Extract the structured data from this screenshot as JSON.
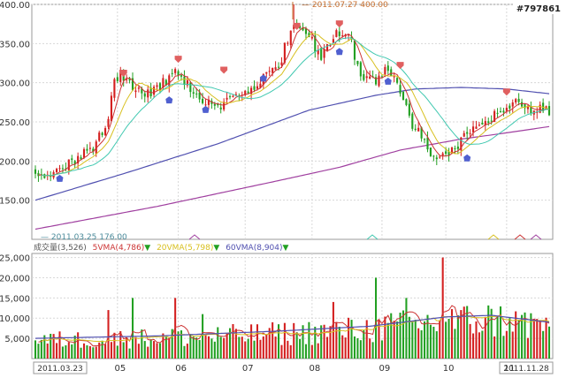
{
  "watermark": "#797861",
  "colors": {
    "up": "#d42020",
    "down": "#22a022",
    "ma5": "#cc3333",
    "ma20": "#d8c020",
    "ma60": "#40c8b0",
    "long1": "#5050b0",
    "long2": "#a040a0",
    "vma5": "#cc3333",
    "vma20": "#d8c020",
    "vma60": "#5050b0",
    "grid": "#d8d8d8",
    "buy_marker": "#5060d0",
    "sell_marker": "#e06060",
    "annotation": "#c87030"
  },
  "chart_data": [
    {
      "type": "candlestick",
      "ylim": [
        100,
        400
      ],
      "yticks": [
        "150.00",
        "200.00",
        "250.00",
        "300.00",
        "350.00",
        "400.00"
      ],
      "high_annotation": {
        "date": "2011.07.27",
        "value": "400.00"
      },
      "low_annotation": {
        "date": "2011.03.25",
        "value": "176.00"
      },
      "x_start": "2011.03.23",
      "x_end": "2011.11.28",
      "month_ticks": [
        {
          "label": "05",
          "index": 27
        },
        {
          "label": "06",
          "index": 47
        },
        {
          "label": "07",
          "index": 69
        },
        {
          "label": "08",
          "index": 91
        },
        {
          "label": "09",
          "index": 114
        },
        {
          "label": "10",
          "index": 135
        },
        {
          "label": "11",
          "index": 155
        }
      ],
      "series_path": [
        [
          0,
          188
        ],
        [
          4,
          178
        ],
        [
          8,
          185
        ],
        [
          12,
          200
        ],
        [
          16,
          210
        ],
        [
          20,
          222
        ],
        [
          24,
          258
        ],
        [
          26,
          300
        ],
        [
          28,
          312
        ],
        [
          30,
          300
        ],
        [
          32,
          295
        ],
        [
          34,
          288
        ],
        [
          38,
          285
        ],
        [
          42,
          300
        ],
        [
          44,
          305
        ],
        [
          46,
          312
        ],
        [
          48,
          305
        ],
        [
          52,
          290
        ],
        [
          56,
          275
        ],
        [
          60,
          265
        ],
        [
          62,
          272
        ],
        [
          66,
          280
        ],
        [
          70,
          290
        ],
        [
          74,
          302
        ],
        [
          78,
          312
        ],
        [
          80,
          320
        ],
        [
          82,
          345
        ],
        [
          84,
          370
        ],
        [
          86,
          380
        ],
        [
          88,
          365
        ],
        [
          90,
          360
        ],
        [
          92,
          345
        ],
        [
          94,
          335
        ],
        [
          96,
          348
        ],
        [
          98,
          360
        ],
        [
          100,
          365
        ],
        [
          102,
          368
        ],
        [
          104,
          350
        ],
        [
          106,
          322
        ],
        [
          108,
          308
        ],
        [
          110,
          302
        ],
        [
          112,
          300
        ],
        [
          114,
          310
        ],
        [
          116,
          320
        ],
        [
          118,
          308
        ],
        [
          120,
          285
        ],
        [
          122,
          268
        ],
        [
          124,
          248
        ],
        [
          126,
          240
        ],
        [
          128,
          225
        ],
        [
          130,
          210
        ],
        [
          132,
          208
        ],
        [
          134,
          212
        ],
        [
          136,
          210
        ],
        [
          138,
          215
        ],
        [
          140,
          225
        ],
        [
          142,
          236
        ],
        [
          144,
          238
        ],
        [
          146,
          242
        ],
        [
          148,
          250
        ],
        [
          150,
          258
        ],
        [
          152,
          262
        ],
        [
          154,
          268
        ],
        [
          156,
          272
        ],
        [
          158,
          275
        ],
        [
          160,
          276
        ],
        [
          162,
          270
        ],
        [
          164,
          262
        ],
        [
          166,
          265
        ],
        [
          168,
          272
        ],
        [
          169,
          263
        ]
      ],
      "ma_long1": [
        [
          0,
          150
        ],
        [
          30,
          185
        ],
        [
          60,
          222
        ],
        [
          90,
          265
        ],
        [
          112,
          284
        ],
        [
          125,
          292
        ],
        [
          140,
          294
        ],
        [
          155,
          292
        ],
        [
          169,
          286
        ]
      ],
      "ma_long2": [
        [
          0,
          113
        ],
        [
          40,
          142
        ],
        [
          80,
          175
        ],
        [
          100,
          192
        ],
        [
          120,
          214
        ],
        [
          140,
          228
        ],
        [
          155,
          236
        ],
        [
          169,
          244
        ]
      ],
      "sell_markers": [
        [
          29,
          312
        ],
        [
          47,
          330
        ],
        [
          62,
          316
        ],
        [
          86,
          372
        ],
        [
          100,
          375
        ],
        [
          120,
          322
        ],
        [
          155,
          288
        ]
      ],
      "buy_markers": [
        [
          8,
          178
        ],
        [
          44,
          278
        ],
        [
          56,
          266
        ],
        [
          75,
          306
        ],
        [
          100,
          340
        ],
        [
          116,
          302
        ],
        [
          142,
          204
        ]
      ]
    },
    {
      "type": "bar",
      "title": "成交量(3,526)",
      "legend": [
        {
          "text": "5VMA(4,786)",
          "color_key": "vma5"
        },
        {
          "text": "20VMA(5,798)",
          "color_key": "vma20"
        },
        {
          "text": "60VMA(8,904)",
          "color_key": "vma60"
        }
      ],
      "ylim": [
        0,
        26000
      ],
      "yticks": [
        "5,000",
        "10,000",
        "15,000",
        "20,000",
        "25,000"
      ],
      "spikes": [
        [
          24,
          12000
        ],
        [
          32,
          15000
        ],
        [
          46,
          15000
        ],
        [
          55,
          11000
        ],
        [
          98,
          14000
        ],
        [
          112,
          20000
        ],
        [
          122,
          15000
        ],
        [
          134,
          25000
        ],
        [
          140,
          12000
        ],
        [
          156,
          10000
        ]
      ],
      "vma60_path": [
        [
          0,
          5000
        ],
        [
          40,
          5600
        ],
        [
          80,
          6800
        ],
        [
          110,
          8000
        ],
        [
          135,
          10300
        ],
        [
          150,
          10700
        ],
        [
          169,
          9000
        ]
      ]
    }
  ],
  "x_labels": {
    "start": "2011.03.23",
    "end": "2011.11.28"
  }
}
